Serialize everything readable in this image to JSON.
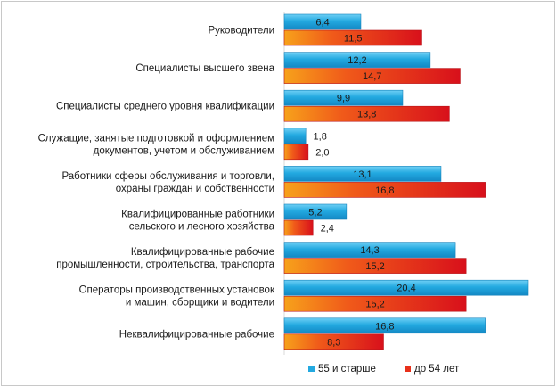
{
  "chart_data": {
    "type": "bar",
    "orientation": "horizontal",
    "categories": [
      [
        "Руководители"
      ],
      [
        "Специалисты  высшего звена"
      ],
      [
        "Специалисты  среднего уровня квалификации"
      ],
      [
        "Служащие,  занятые  подготовкой и оформлением",
        "документов, учетом и обслуживанием"
      ],
      [
        "Работники сферы обслуживания и торговли,",
        "охраны граждан и  собственности"
      ],
      [
        "Квалифицированные  работники",
        "сельского и лесного хозяйства"
      ],
      [
        "Квалифицированные  рабочие",
        "промышленности,  строительства, транспорта"
      ],
      [
        "Операторы производственных установок",
        "и машин,  сборщики и водители"
      ],
      [
        "Неквалифицированные  рабочие"
      ]
    ],
    "series": [
      {
        "name": "55 и старше",
        "color": "#23a9e0",
        "values": [
          6.4,
          12.2,
          9.9,
          1.8,
          13.1,
          5.2,
          14.3,
          20.4,
          16.8
        ],
        "labels": [
          "6,4",
          "12,2",
          "9,9",
          "1,8",
          "13,1",
          "5,2",
          "14,3",
          "20,4",
          "16,8"
        ]
      },
      {
        "name": "до 54 лет",
        "color": "#e8301a",
        "values": [
          11.5,
          14.7,
          13.8,
          2.0,
          16.8,
          2.4,
          15.2,
          15.2,
          8.3
        ],
        "labels": [
          "11,5",
          "14,7",
          "13,8",
          "2,0",
          "16,8",
          "2,4",
          "15,2",
          "15,2",
          "8,3"
        ]
      }
    ],
    "xlim": [
      0,
      20.4
    ],
    "grid": false,
    "legend_position": "bottom"
  }
}
